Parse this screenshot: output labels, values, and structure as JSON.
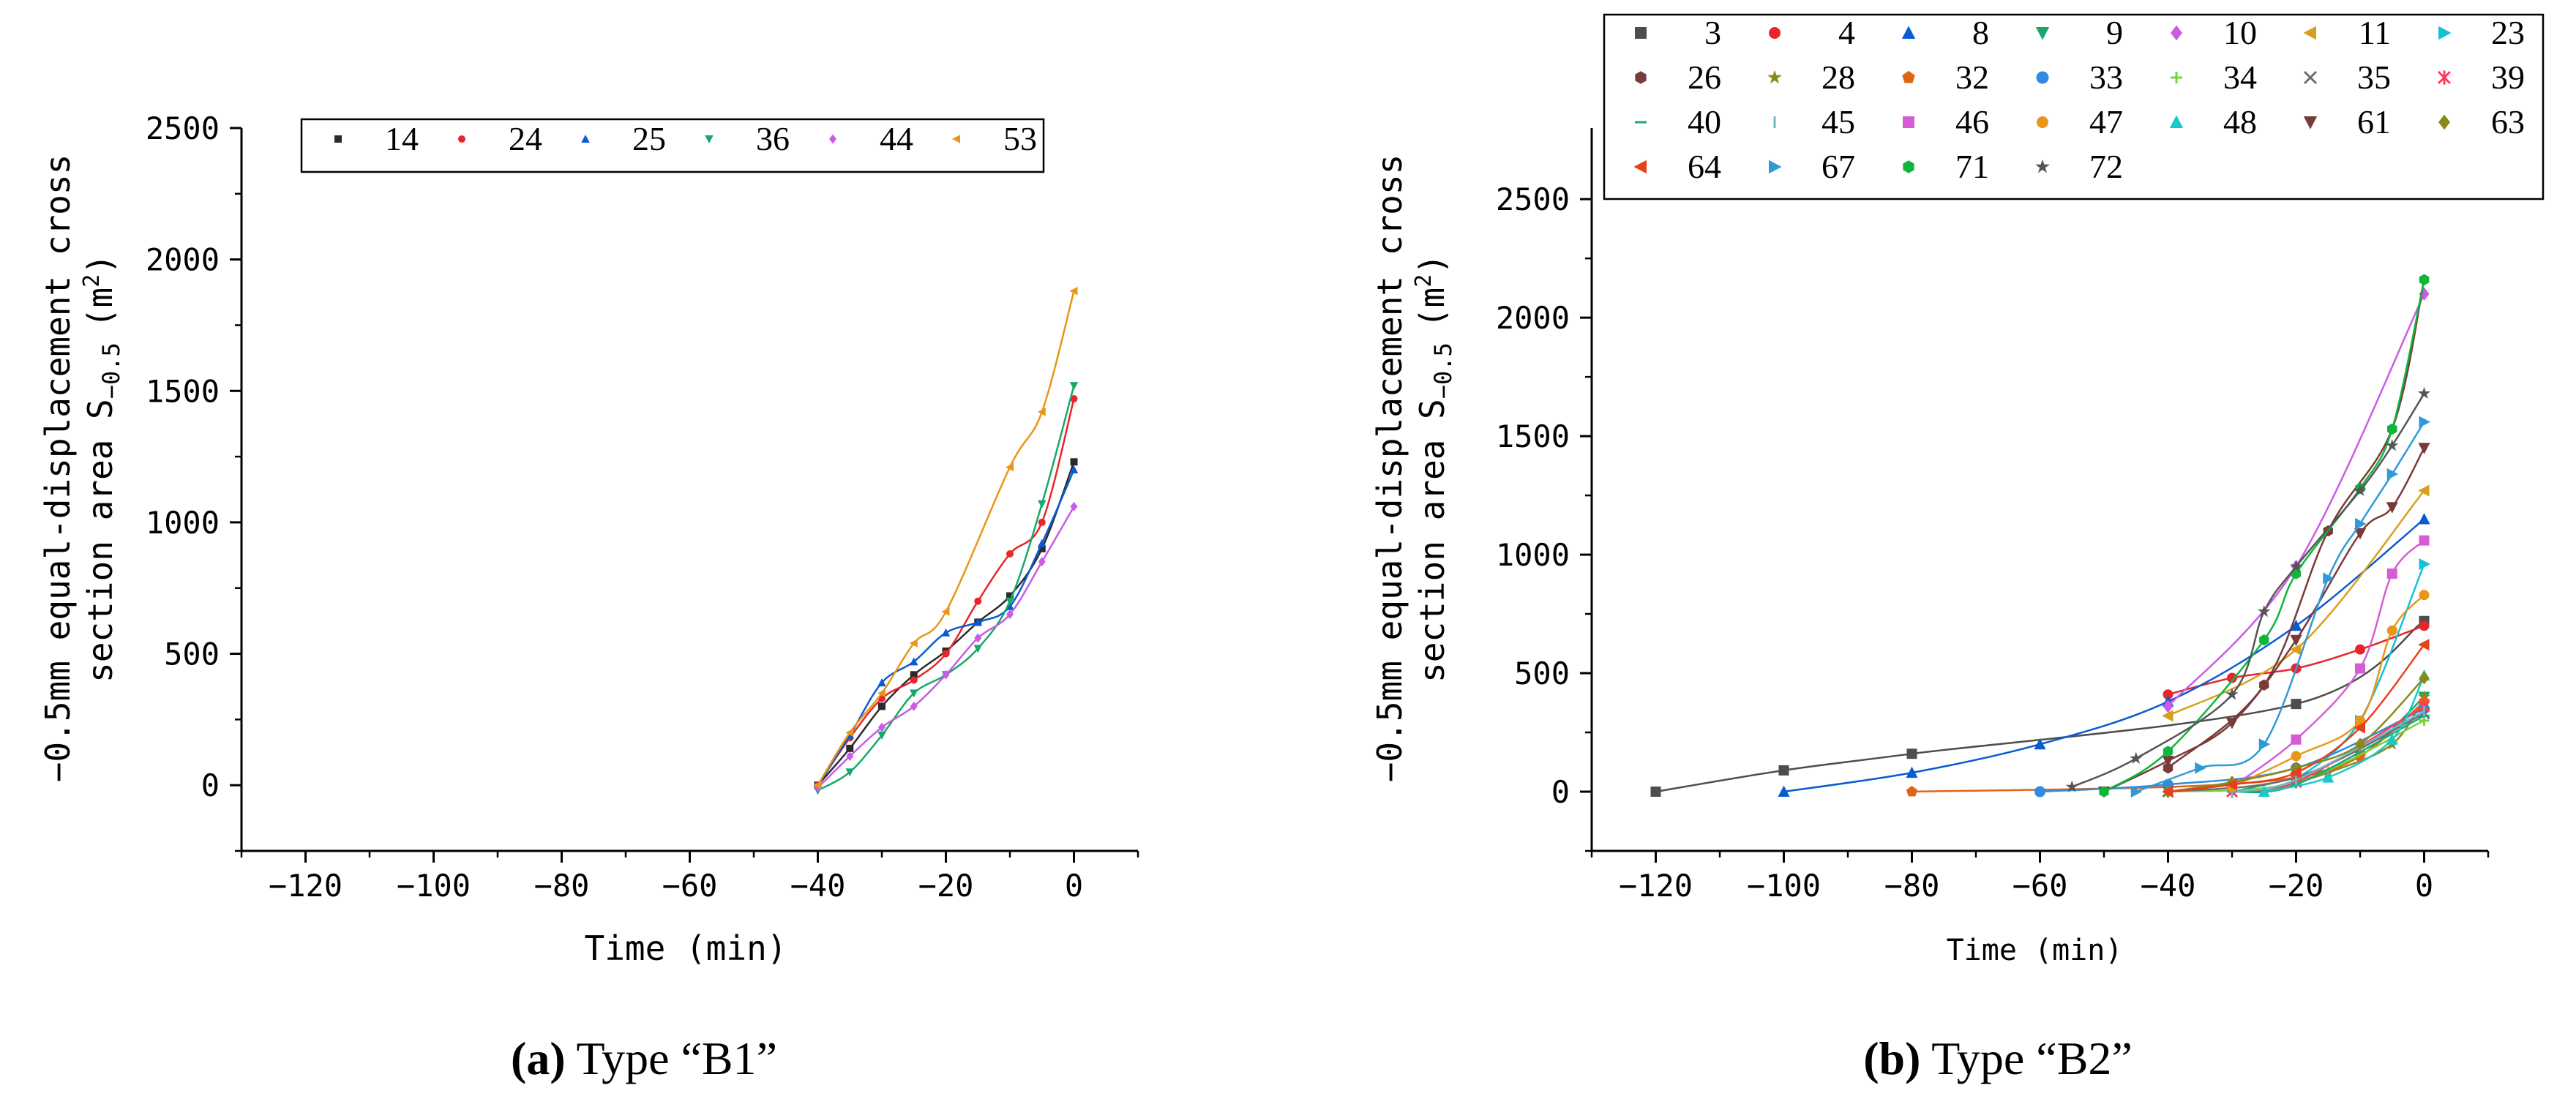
{
  "colors": {
    "axis": "#000000",
    "palette": [
      "#4d4d4d",
      "#e8252b",
      "#0a5bd1",
      "#17a86a",
      "#c95ce6",
      "#d8a01a",
      "#13c2d6",
      "#7a3a3a",
      "#8a8a1a",
      "#e06418",
      "#2f8ce0",
      "#77d23c",
      "#6e6e6e",
      "#ff3b5b",
      "#1aa87a",
      "#6fb8c8",
      "#d65cd6",
      "#e8961a",
      "#19c9c9",
      "#7a3a3a",
      "#8a8a1a",
      "#e8401a",
      "#2f9ad6",
      "#0fb53a",
      "#555555"
    ]
  },
  "panels": [
    {
      "id": "a",
      "caption_letter": "(a)",
      "caption_text": " Type “B1”",
      "chart_data": {
        "type": "scatter",
        "xlabel": "Time (min)",
        "ylabel_line1": "−0.5mm equal-displacement cross",
        "ylabel_line2": "section area S",
        "ylabel_sub": "−0.5",
        "ylabel_unit": "(m",
        "ylabel_sup": "2",
        "ylabel_close": ")",
        "xlim": [
          -130,
          10
        ],
        "ylim": [
          -250,
          2500
        ],
        "xticks": [
          -120,
          -100,
          -80,
          -60,
          -40,
          -20,
          0
        ],
        "yticks": [
          0,
          500,
          1000,
          1500,
          2000,
          2500
        ],
        "legend_position": "top",
        "legend_columns": 6,
        "series": [
          {
            "name": "14",
            "marker": "square",
            "color": "#2a2a2a",
            "x": [
              -40,
              -35,
              -30,
              -25,
              -20,
              -15,
              -10,
              -5,
              0
            ],
            "y": [
              0,
              140,
              300,
              420,
              510,
              620,
              720,
              900,
              1230
            ]
          },
          {
            "name": "24",
            "marker": "circle",
            "color": "#e8252b",
            "x": [
              -40,
              -35,
              -30,
              -25,
              -20,
              -15,
              -10,
              -5,
              0
            ],
            "y": [
              0,
              180,
              330,
              400,
              500,
              700,
              880,
              1000,
              1470
            ]
          },
          {
            "name": "25",
            "marker": "triangle-up",
            "color": "#0a5bd1",
            "x": [
              -40,
              -35,
              -30,
              -25,
              -20,
              -15,
              -10,
              -5,
              0
            ],
            "y": [
              0,
              190,
              390,
              470,
              580,
              620,
              680,
              920,
              1200
            ]
          },
          {
            "name": "36",
            "marker": "triangle-down",
            "color": "#17a86a",
            "x": [
              -40,
              -35,
              -30,
              -25,
              -20,
              -15,
              -10,
              -5,
              0
            ],
            "y": [
              -20,
              50,
              190,
              350,
              420,
              520,
              700,
              1070,
              1520
            ]
          },
          {
            "name": "44",
            "marker": "diamond",
            "color": "#c95ce6",
            "x": [
              -40,
              -35,
              -30,
              -25,
              -20,
              -15,
              -10,
              -5,
              0
            ],
            "y": [
              -10,
              110,
              220,
              300,
              420,
              560,
              650,
              850,
              1060
            ]
          },
          {
            "name": "53",
            "marker": "triangle-left",
            "color": "#e8961a",
            "x": [
              -40,
              -35,
              -30,
              -25,
              -20,
              -10,
              -5,
              0
            ],
            "y": [
              0,
              200,
              350,
              540,
              660,
              1210,
              1420,
              1880
            ]
          }
        ]
      }
    },
    {
      "id": "b",
      "caption_letter": "(b)",
      "caption_text": " Type “B2”",
      "chart_data": {
        "type": "scatter",
        "xlabel": "Time (min)",
        "ylabel_line1": "−0.5mm equal-displacement cross",
        "ylabel_line2": "section area S",
        "ylabel_sub": "−0.5",
        "ylabel_unit": "(m",
        "ylabel_sup": "2",
        "ylabel_close": ")",
        "xlim": [
          -130,
          10
        ],
        "ylim": [
          -250,
          2800
        ],
        "xticks": [
          -120,
          -100,
          -80,
          -60,
          -40,
          -20,
          0
        ],
        "yticks": [
          0,
          500,
          1000,
          1500,
          2000,
          2500
        ],
        "legend_position": "top",
        "legend_columns": 7,
        "series": [
          {
            "name": "3",
            "marker": "square",
            "color": "#4d4d4d",
            "x": [
              -120,
              -100,
              -80,
              -20,
              0
            ],
            "y": [
              0,
              90,
              160,
              370,
              720
            ]
          },
          {
            "name": "4",
            "marker": "circle",
            "color": "#e8252b",
            "x": [
              -40,
              -30,
              -20,
              -10,
              0
            ],
            "y": [
              410,
              480,
              520,
              600,
              700
            ]
          },
          {
            "name": "8",
            "marker": "triangle-up",
            "color": "#0a5bd1",
            "x": [
              -100,
              -80,
              -60,
              -40,
              -20,
              0
            ],
            "y": [
              0,
              80,
              200,
              380,
              700,
              1150
            ]
          },
          {
            "name": "9",
            "marker": "triangle-down",
            "color": "#17a86a",
            "x": [
              -30,
              -20,
              -10,
              0
            ],
            "y": [
              0,
              60,
              150,
              400
            ]
          },
          {
            "name": "10",
            "marker": "diamond",
            "color": "#c95ce6",
            "x": [
              -40,
              -20,
              0
            ],
            "y": [
              360,
              950,
              2100
            ]
          },
          {
            "name": "11",
            "marker": "triangle-left",
            "color": "#d8a01a",
            "x": [
              -40,
              -20,
              0
            ],
            "y": [
              320,
              600,
              1270
            ]
          },
          {
            "name": "23",
            "marker": "triangle-right",
            "color": "#13c2d6",
            "x": [
              -20,
              -10,
              0
            ],
            "y": [
              50,
              300,
              960
            ]
          },
          {
            "name": "26",
            "marker": "hexagon",
            "color": "#7a3a3a",
            "x": [
              -40,
              -25,
              -15,
              -5,
              0
            ],
            "y": [
              100,
              450,
              1100,
              1530,
              2160
            ]
          },
          {
            "name": "28",
            "marker": "star",
            "color": "#8a8a1a",
            "x": [
              -25,
              -15,
              -5,
              0
            ],
            "y": [
              0,
              80,
              200,
              400
            ]
          },
          {
            "name": "32",
            "marker": "pentagon",
            "color": "#e06418",
            "x": [
              -80,
              -40,
              -20,
              -10,
              0
            ],
            "y": [
              0,
              20,
              60,
              150,
              380
            ]
          },
          {
            "name": "33",
            "marker": "halfcircle",
            "color": "#2f8ce0",
            "x": [
              -60,
              -40,
              -20,
              0
            ],
            "y": [
              0,
              30,
              100,
              350
            ]
          },
          {
            "name": "34",
            "marker": "plus",
            "color": "#77d23c",
            "x": [
              -40,
              -20,
              0
            ],
            "y": [
              0,
              40,
              300
            ]
          },
          {
            "name": "35",
            "marker": "cross",
            "color": "#6e6e6e",
            "x": [
              -40,
              -20,
              0
            ],
            "y": [
              0,
              60,
              330
            ]
          },
          {
            "name": "39",
            "marker": "asterisk",
            "color": "#ff3b5b",
            "x": [
              -30,
              -20,
              0
            ],
            "y": [
              0,
              40,
              360
            ]
          },
          {
            "name": "40",
            "marker": "hline",
            "color": "#1aa87a",
            "x": [
              -30,
              -20,
              0
            ],
            "y": [
              0,
              30,
              320
            ]
          },
          {
            "name": "45",
            "marker": "vline",
            "color": "#6fb8c8",
            "x": [
              -30,
              -20,
              0
            ],
            "y": [
              0,
              50,
              340
            ]
          },
          {
            "name": "46",
            "marker": "square",
            "color": "#d65cd6",
            "x": [
              -30,
              -20,
              -10,
              -5,
              0
            ],
            "y": [
              20,
              220,
              520,
              920,
              1060
            ]
          },
          {
            "name": "47",
            "marker": "circle",
            "color": "#e8961a",
            "x": [
              -30,
              -20,
              -10,
              -5,
              0
            ],
            "y": [
              20,
              150,
              300,
              680,
              830
            ]
          },
          {
            "name": "48",
            "marker": "triangle-up",
            "color": "#19c9c9",
            "x": [
              -25,
              -15,
              -5,
              0
            ],
            "y": [
              0,
              60,
              220,
              490
            ]
          },
          {
            "name": "61",
            "marker": "triangle-down",
            "color": "#7a3a3a",
            "x": [
              -50,
              -40,
              -30,
              -20,
              -10,
              -5,
              0
            ],
            "y": [
              0,
              130,
              290,
              640,
              1090,
              1200,
              1450
            ]
          },
          {
            "name": "63",
            "marker": "diamond",
            "color": "#8a8a1a",
            "x": [
              -40,
              -30,
              -20,
              -10,
              0
            ],
            "y": [
              0,
              40,
              100,
              200,
              480
            ]
          },
          {
            "name": "64",
            "marker": "triangle-left",
            "color": "#e8401a",
            "x": [
              -40,
              -30,
              -20,
              -10,
              0
            ],
            "y": [
              0,
              30,
              80,
              270,
              620
            ]
          },
          {
            "name": "67",
            "marker": "triangle-right",
            "color": "#2f9ad6",
            "x": [
              -45,
              -35,
              -25,
              -15,
              -10,
              -5,
              0
            ],
            "y": [
              0,
              100,
              200,
              900,
              1130,
              1340,
              1560
            ]
          },
          {
            "name": "71",
            "marker": "hexagon",
            "color": "#0fb53a",
            "x": [
              -50,
              -40,
              -25,
              -20,
              -10,
              -5,
              0
            ],
            "y": [
              0,
              170,
              640,
              920,
              1280,
              1530,
              2160
            ]
          },
          {
            "name": "72",
            "marker": "star",
            "color": "#555555",
            "x": [
              -55,
              -45,
              -30,
              -25,
              -20,
              -10,
              -5,
              0
            ],
            "y": [
              20,
              140,
              410,
              760,
              950,
              1270,
              1460,
              1680
            ]
          }
        ]
      }
    }
  ]
}
